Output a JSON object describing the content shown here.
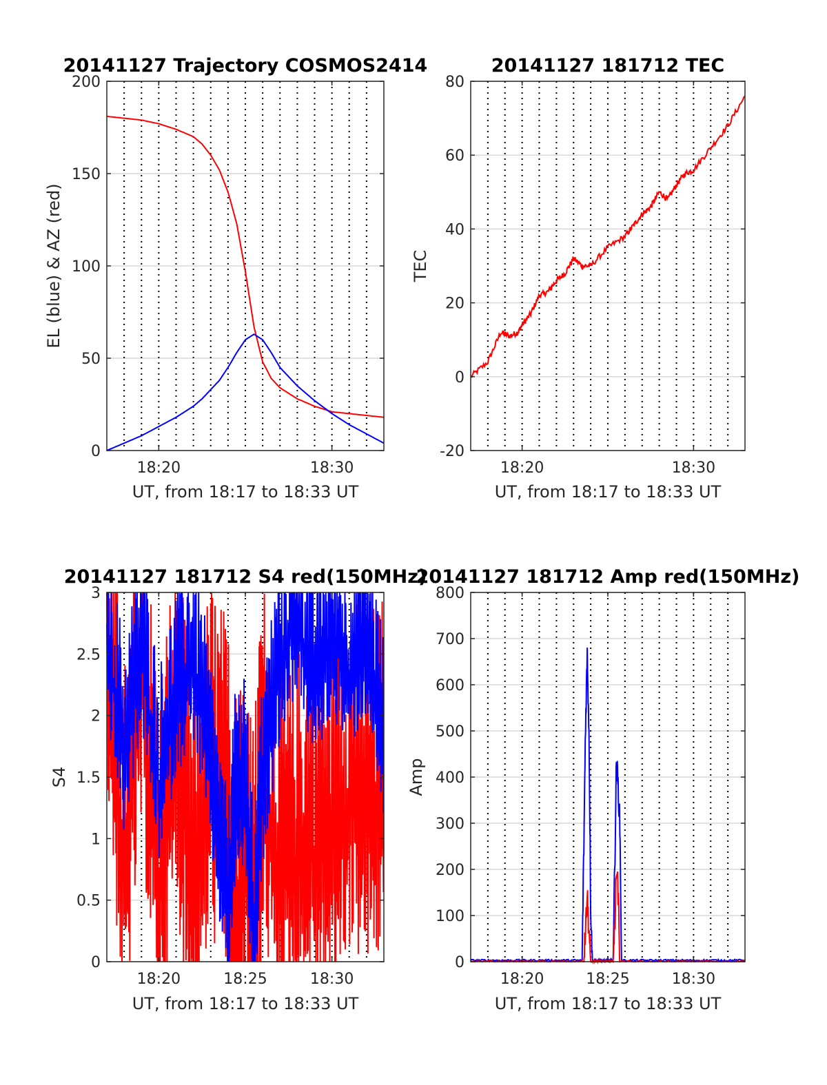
{
  "figure": {
    "colors": {
      "el": "#0000ff",
      "az": "#ff0000",
      "red": "#ff0000",
      "blue": "#0000ff",
      "grid": "#d9d9d9",
      "axes": "#262626"
    },
    "vertical_dotted_lines_min": [
      18.0,
      19.0,
      20.0,
      21.0,
      22.0,
      23.0,
      24.0,
      25.0,
      26.0,
      27.0,
      28.0,
      29.0,
      30.0,
      31.0,
      32.0
    ]
  },
  "chart_data": [
    {
      "type": "line",
      "title": "20141127 Trajectory COSMOS2414",
      "xlabel": "UT, from 18:17 to 18:33 UT",
      "ylabel": "EL (blue) & AZ (red)",
      "xlim": [
        "18:17",
        "18:33"
      ],
      "ylim": [
        0,
        200
      ],
      "xticks": [
        "18:20",
        "18:30"
      ],
      "yticks": [
        "0",
        "50",
        "100",
        "150",
        "200"
      ],
      "grid": "horizontal",
      "series": [
        {
          "color": "#ff0000",
          "x": [
            "18:17",
            "18:18",
            "18:19",
            "18:20",
            "18:21",
            "18:22",
            "18:22:30",
            "18:23",
            "18:23:30",
            "18:24",
            "18:24:30",
            "18:25",
            "18:25:30",
            "18:26",
            "18:26:30",
            "18:27",
            "18:28",
            "18:29",
            "18:30",
            "18:31",
            "18:32",
            "18:33"
          ],
          "values": [
            181,
            180,
            179,
            177,
            174,
            170,
            166,
            160,
            152,
            140,
            123,
            97,
            67,
            48,
            39,
            34,
            28,
            24,
            21,
            20,
            19,
            18
          ]
        },
        {
          "color": "#0000ff",
          "x": [
            "18:17",
            "18:18",
            "18:19",
            "18:20",
            "18:21",
            "18:22",
            "18:22:30",
            "18:23",
            "18:23:30",
            "18:24",
            "18:24:30",
            "18:25",
            "18:25:30",
            "18:26",
            "18:26:30",
            "18:27",
            "18:28",
            "18:29",
            "18:30",
            "18:31",
            "18:32",
            "18:33"
          ],
          "values": [
            0,
            4,
            8,
            13,
            18,
            24,
            28,
            33,
            38,
            45,
            53,
            60,
            63,
            60,
            53,
            45,
            35,
            27,
            20,
            14,
            9,
            4
          ]
        }
      ]
    },
    {
      "type": "line",
      "title": "20141127 181712 TEC",
      "xlabel": "UT, from 18:17 to 18:33 UT",
      "ylabel": "TEC",
      "xlim": [
        "18:17",
        "18:33"
      ],
      "ylim": [
        -20,
        80
      ],
      "xticks": [
        "18:20",
        "18:30"
      ],
      "yticks": [
        "-20",
        "0",
        "20",
        "40",
        "60",
        "80"
      ],
      "grid": "horizontal",
      "series": [
        {
          "color": "#ff0000",
          "x": [
            "18:17",
            "18:18",
            "18:18:45",
            "18:19:15",
            "18:19:45",
            "18:20",
            "18:20:30",
            "18:21",
            "18:21:30",
            "18:22",
            "18:22:30",
            "18:23",
            "18:23:30",
            "18:24",
            "18:25",
            "18:26",
            "18:26:30",
            "18:27",
            "18:27:30",
            "18:28",
            "18:28:30",
            "18:29",
            "18:29:30",
            "18:30",
            "18:31",
            "18:32",
            "18:33"
          ],
          "values": [
            0,
            4,
            12,
            11,
            12,
            14,
            17,
            22,
            23,
            26,
            28,
            32,
            30,
            30,
            35,
            38,
            41,
            44,
            46,
            50,
            48,
            52,
            55,
            56,
            62,
            68,
            76
          ]
        }
      ]
    },
    {
      "type": "line",
      "title": "20141127 181712 S4 red(150MHz)",
      "xlabel": "UT, from 18:17 to 18:33 UT",
      "ylabel": "S4",
      "xlim": [
        "18:17",
        "18:33"
      ],
      "ylim": [
        0,
        3
      ],
      "xticks": [
        "18:20",
        "18:25",
        "18:30"
      ],
      "yticks": [
        "0",
        "0.5",
        "1",
        "1.5",
        "2",
        "2.5",
        "3"
      ],
      "grid": "horizontal",
      "series": [
        {
          "color": "#ff0000",
          "x": [
            "18:17",
            "18:18",
            "18:19",
            "18:20",
            "18:21",
            "18:22",
            "18:23",
            "18:24",
            "18:24:30",
            "18:25",
            "18:25:30",
            "18:26",
            "18:27",
            "18:28",
            "18:29",
            "18:30",
            "18:31",
            "18:32",
            "18:33"
          ],
          "values": [
            2.6,
            0.6,
            2.2,
            0.5,
            1.7,
            0.4,
            1.4,
            1.0,
            0.5,
            0.7,
            0.1,
            1.4,
            0.6,
            0.8,
            0.9,
            0.9,
            1.3,
            1.1,
            1.2
          ]
        },
        {
          "color": "#0000ff",
          "x": [
            "18:17",
            "18:18",
            "18:19",
            "18:20",
            "18:21",
            "18:22",
            "18:23",
            "18:24",
            "18:24:30",
            "18:25",
            "18:25:30",
            "18:26",
            "18:27",
            "18:28",
            "18:29",
            "18:30",
            "18:31",
            "18:32",
            "18:33"
          ],
          "values": [
            2.6,
            1.6,
            2.5,
            1.4,
            2.1,
            2.4,
            1.5,
            0.3,
            1.4,
            1.3,
            0.1,
            1.4,
            2.4,
            2.8,
            2.2,
            2.6,
            2.3,
            2.6,
            1.7
          ]
        }
      ]
    },
    {
      "type": "line",
      "title": "20141127 181712 Amp red(150MHz)",
      "xlabel": "UT, from 18:17 to 18:33 UT",
      "ylabel": "Amp",
      "xlim": [
        "18:17",
        "18:33"
      ],
      "ylim": [
        0,
        800
      ],
      "xticks": [
        "18:20",
        "18:25",
        "18:30"
      ],
      "yticks": [
        "0",
        "100",
        "200",
        "300",
        "400",
        "500",
        "600",
        "700",
        "800"
      ],
      "grid": "horizontal",
      "series": [
        {
          "color": "#0000ff",
          "x": [
            "18:17",
            "18:23:30",
            "18:23:36",
            "18:23:42",
            "18:23:48",
            "18:23:54",
            "18:24",
            "18:24:06",
            "18:25:18",
            "18:25:24",
            "18:25:30",
            "18:25:36",
            "18:25:42",
            "18:25:48",
            "18:33"
          ],
          "values": [
            3,
            3,
            250,
            520,
            665,
            500,
            120,
            3,
            3,
            200,
            435,
            380,
            300,
            3,
            3
          ]
        },
        {
          "color": "#ff0000",
          "x": [
            "18:17",
            "18:23:36",
            "18:23:42",
            "18:23:48",
            "18:23:54",
            "18:24",
            "18:25:18",
            "18:25:24",
            "18:25:30",
            "18:25:36",
            "18:25:42",
            "18:33"
          ],
          "values": [
            0,
            0,
            70,
            140,
            60,
            0,
            0,
            60,
            200,
            150,
            0,
            0
          ]
        }
      ]
    }
  ]
}
